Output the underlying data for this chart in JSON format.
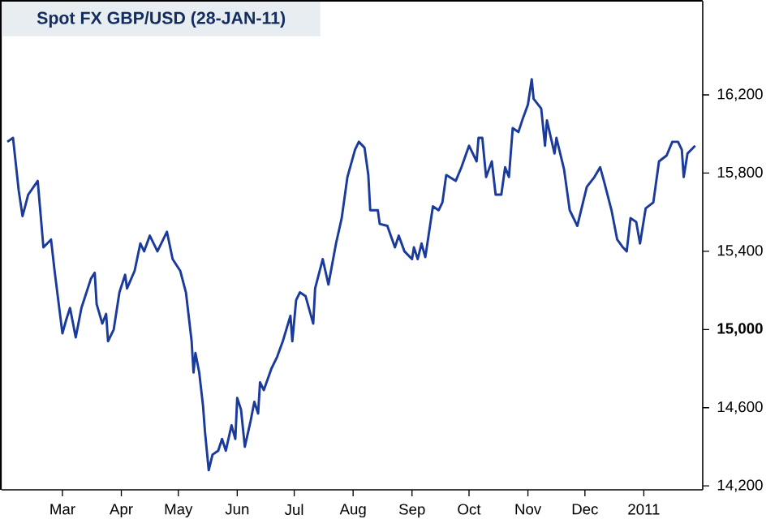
{
  "chart_data": {
    "type": "line",
    "title": "Spot FX GBP/USD (28-JAN-11)",
    "x": [
      "2010-01-31",
      "2010-02-03",
      "2010-02-06",
      "2010-02-08",
      "2010-02-11",
      "2010-02-16",
      "2010-02-19",
      "2010-02-23",
      "2010-02-25",
      "2010-03-01",
      "2010-03-03",
      "2010-03-05",
      "2010-03-08",
      "2010-03-11",
      "2010-03-16",
      "2010-03-18",
      "2010-03-19",
      "2010-03-22",
      "2010-03-24",
      "2010-03-25",
      "2010-03-28",
      "2010-03-31",
      "2010-04-03",
      "2010-04-04",
      "2010-04-08",
      "2010-04-11",
      "2010-04-13",
      "2010-04-16",
      "2010-04-20",
      "2010-04-25",
      "2010-04-28",
      "2010-05-02",
      "2010-05-05",
      "2010-05-08",
      "2010-05-09",
      "2010-05-10",
      "2010-05-12",
      "2010-05-14",
      "2010-05-15",
      "2010-05-17",
      "2010-05-19",
      "2010-05-22",
      "2010-05-24",
      "2010-05-26",
      "2010-05-29",
      "2010-05-31",
      "2010-06-01",
      "2010-06-03",
      "2010-06-05",
      "2010-06-08",
      "2010-06-10",
      "2010-06-12",
      "2010-06-13",
      "2010-06-15",
      "2010-06-19",
      "2010-06-22",
      "2010-06-25",
      "2010-06-29",
      "2010-06-30",
      "2010-07-02",
      "2010-07-04",
      "2010-07-07",
      "2010-07-11",
      "2010-07-12",
      "2010-07-16",
      "2010-07-19",
      "2010-07-23",
      "2010-07-26",
      "2010-07-29",
      "2010-08-02",
      "2010-08-04",
      "2010-08-07",
      "2010-08-09",
      "2010-08-10",
      "2010-08-14",
      "2010-08-15",
      "2010-08-19",
      "2010-08-23",
      "2010-08-25",
      "2010-08-28",
      "2010-09-01",
      "2010-09-02",
      "2010-09-04",
      "2010-09-06",
      "2010-09-08",
      "2010-09-12",
      "2010-09-15",
      "2010-09-17",
      "2010-09-19",
      "2010-09-24",
      "2010-09-27",
      "2010-10-01",
      "2010-10-05",
      "2010-10-06",
      "2010-10-08",
      "2010-10-10",
      "2010-10-13",
      "2010-10-15",
      "2010-10-18",
      "2010-10-20",
      "2010-10-22",
      "2010-10-24",
      "2010-10-27",
      "2010-10-29",
      "2010-11-01",
      "2010-11-03",
      "2010-11-04",
      "2010-11-08",
      "2010-11-10",
      "2010-11-11",
      "2010-11-15",
      "2010-11-16",
      "2010-11-20",
      "2010-11-23",
      "2010-11-27",
      "2010-11-28",
      "2010-12-02",
      "2010-12-06",
      "2010-12-09",
      "2010-12-11",
      "2010-12-15",
      "2010-12-18",
      "2010-12-21",
      "2010-12-23",
      "2010-12-25",
      "2010-12-28",
      "2010-12-30",
      "2011-01-02",
      "2011-01-06",
      "2011-01-09",
      "2011-01-13",
      "2011-01-16",
      "2011-01-19",
      "2011-01-21",
      "2011-01-22",
      "2011-01-24",
      "2011-01-28"
    ],
    "series": [
      {
        "color": "#1a3a9c",
        "values": [
          15960,
          15980,
          15710,
          15580,
          15690,
          15760,
          15420,
          15460,
          15290,
          14980,
          15050,
          15110,
          14960,
          15110,
          15260,
          15290,
          15130,
          15030,
          15080,
          14940,
          15000,
          15190,
          15280,
          15210,
          15300,
          15440,
          15400,
          15480,
          15400,
          15500,
          15360,
          15300,
          15190,
          14940,
          14780,
          14880,
          14780,
          14610,
          14480,
          14280,
          14360,
          14380,
          14440,
          14380,
          14510,
          14440,
          14650,
          14590,
          14400,
          14530,
          14630,
          14570,
          14730,
          14690,
          14800,
          14860,
          14940,
          15070,
          14940,
          15150,
          15190,
          15170,
          15030,
          15210,
          15360,
          15230,
          15440,
          15570,
          15780,
          15920,
          15960,
          15930,
          15790,
          15610,
          15610,
          15540,
          15530,
          15420,
          15480,
          15400,
          15360,
          15420,
          15360,
          15440,
          15370,
          15630,
          15610,
          15650,
          15790,
          15760,
          15830,
          15940,
          15860,
          15980,
          15980,
          15780,
          15860,
          15690,
          15690,
          15830,
          15780,
          16030,
          16010,
          16070,
          16150,
          16280,
          16180,
          16130,
          15940,
          16070,
          15900,
          15980,
          15820,
          15610,
          15530,
          15570,
          15730,
          15780,
          15830,
          15760,
          15610,
          15460,
          15420,
          15400,
          15570,
          15550,
          15440,
          15620,
          15650,
          15860,
          15890,
          15960,
          15960,
          15920,
          15780,
          15900,
          15940
        ]
      }
    ],
    "xlim": [
      "2010-01-28",
      "2011-02-01"
    ],
    "xticks": [
      {
        "value": "2010-03-01",
        "label": "Mar"
      },
      {
        "value": "2010-04-01",
        "label": "Apr"
      },
      {
        "value": "2010-05-01",
        "label": "May"
      },
      {
        "value": "2010-06-01",
        "label": "Jun"
      },
      {
        "value": "2010-07-01",
        "label": "Jul"
      },
      {
        "value": "2010-08-01",
        "label": "Aug"
      },
      {
        "value": "2010-09-01",
        "label": "Sep"
      },
      {
        "value": "2010-10-01",
        "label": "Oct"
      },
      {
        "value": "2010-11-01",
        "label": "Nov"
      },
      {
        "value": "2010-12-01",
        "label": "Dec"
      },
      {
        "value": "2011-01-01",
        "label": "2011"
      }
    ],
    "ylim": [
      14180,
      16680
    ],
    "yticks": [
      {
        "value": 14200,
        "label": "14,200"
      },
      {
        "value": 14600,
        "label": "14,600"
      },
      {
        "value": 15000,
        "label": "**15,000**"
      },
      {
        "value": 15400,
        "label": "15,400"
      },
      {
        "value": 15800,
        "label": "15,800"
      },
      {
        "value": 16200,
        "label": "16,200"
      }
    ],
    "grid": false,
    "marker": "none",
    "line_style": "solid"
  }
}
